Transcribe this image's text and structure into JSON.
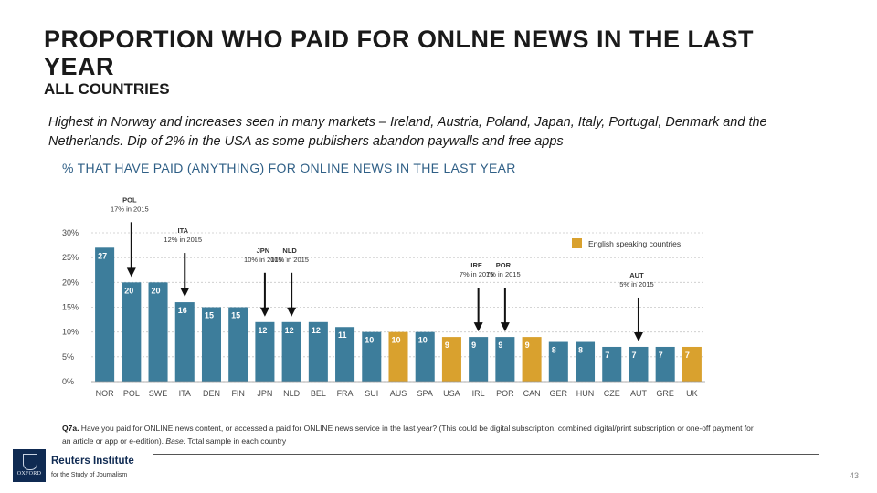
{
  "slide": {
    "title": "PROPORTION WHO PAID FOR ONLNE NEWS IN THE LAST YEAR",
    "subtitle": "ALL COUNTRIES",
    "intro": "Highest in Norway and increases seen in many markets – Ireland, Austria, Poland, Japan, Italy, Portugal, Denmark and the Netherlands. Dip of 2% in the USA as some publishers abandon paywalls and free apps",
    "chart_heading": "% THAT HAVE PAID (ANYTHING) FOR ONLINE NEWS IN THE LAST YEAR",
    "footnote_q": "Q7a.",
    "footnote_text": " Have you paid for ONLINE news content, or accessed a paid for ONLINE news service in the last year? (This could be digital subscription, combined digital/print subscription or one-off payment for an article or app or e-edition). ",
    "footnote_base_label": "Base:",
    "footnote_base": " Total sample in each country",
    "brand_name": "Reuters Institute",
    "brand_sub": "for the Study of Journalism",
    "logo_word": "OXFORD",
    "page_number": "43"
  },
  "chart_data": {
    "type": "bar",
    "categories": [
      "NOR",
      "POL",
      "SWE",
      "ITA",
      "DEN",
      "FIN",
      "JPN",
      "NLD",
      "BEL",
      "FRA",
      "SUI",
      "AUS",
      "SPA",
      "USA",
      "IRL",
      "POR",
      "CAN",
      "GER",
      "HUN",
      "CZE",
      "AUT",
      "GRE",
      "UK"
    ],
    "values": [
      27,
      20,
      20,
      16,
      15,
      15,
      12,
      12,
      12,
      11,
      10,
      10,
      10,
      9,
      9,
      9,
      9,
      8,
      8,
      7,
      7,
      7,
      7
    ],
    "english_speaking": [
      "AUS",
      "USA",
      "CAN",
      "UK"
    ],
    "ylim": [
      0,
      30
    ],
    "yticks": [
      "0%",
      "5%",
      "10%",
      "15%",
      "20%",
      "25%",
      "30%"
    ],
    "grid": true,
    "legend": {
      "label": "English speaking countries",
      "position": "top-right"
    },
    "colors": {
      "default": "#3d7d9b",
      "english_speaking": "#d9a12e",
      "grid": "#c8c8c8",
      "text": "#4a4a4a"
    },
    "annotations": [
      {
        "category": "POL",
        "code": "POL",
        "note": "17% in 2015"
      },
      {
        "category": "ITA",
        "code": "ITA",
        "note": "12% in 2015"
      },
      {
        "category": "JPN",
        "code": "JPN",
        "note": "10% in 2015"
      },
      {
        "category": "NLD",
        "code": "NLD",
        "note": "10% in 2015"
      },
      {
        "category": "IRL",
        "code": "IRE",
        "note": "7% in 2015"
      },
      {
        "category": "POR",
        "code": "POR",
        "note": "7% in 2015"
      },
      {
        "category": "AUT",
        "code": "AUT",
        "note": "5% in 2015"
      }
    ]
  }
}
